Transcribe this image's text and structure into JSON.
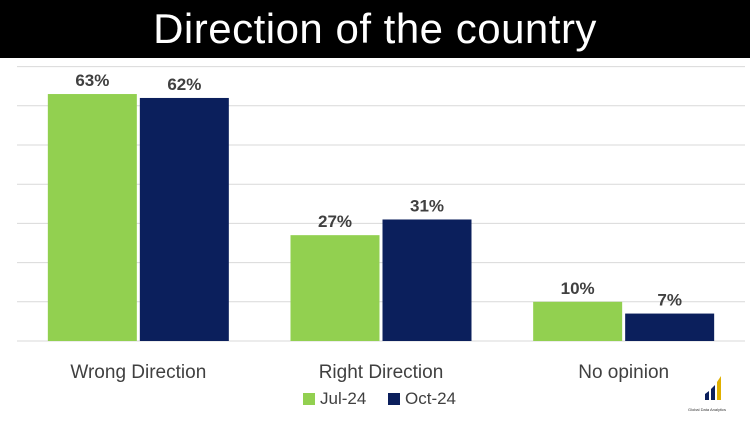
{
  "title": "Direction of the country",
  "logo_text": "Global Data Analytics",
  "colors": {
    "series_1": "#92D050",
    "series_2": "#0B1F5C",
    "gridline": "#D9D9D9",
    "text": "#404040",
    "title_bg": "#000000"
  },
  "chart_data": {
    "type": "bar",
    "title": "Direction of the country",
    "categories": [
      "Wrong Direction",
      "Right Direction",
      "No opinion"
    ],
    "series": [
      {
        "name": "Jul-24",
        "values": [
          63,
          27,
          10
        ],
        "labels": [
          "63%",
          "27%",
          "10%"
        ]
      },
      {
        "name": "Oct-24",
        "values": [
          62,
          31,
          7
        ],
        "labels": [
          "62%",
          "31%",
          "7%"
        ]
      }
    ],
    "ylim": [
      0,
      70
    ],
    "grid": true,
    "legend_position": "bottom"
  }
}
